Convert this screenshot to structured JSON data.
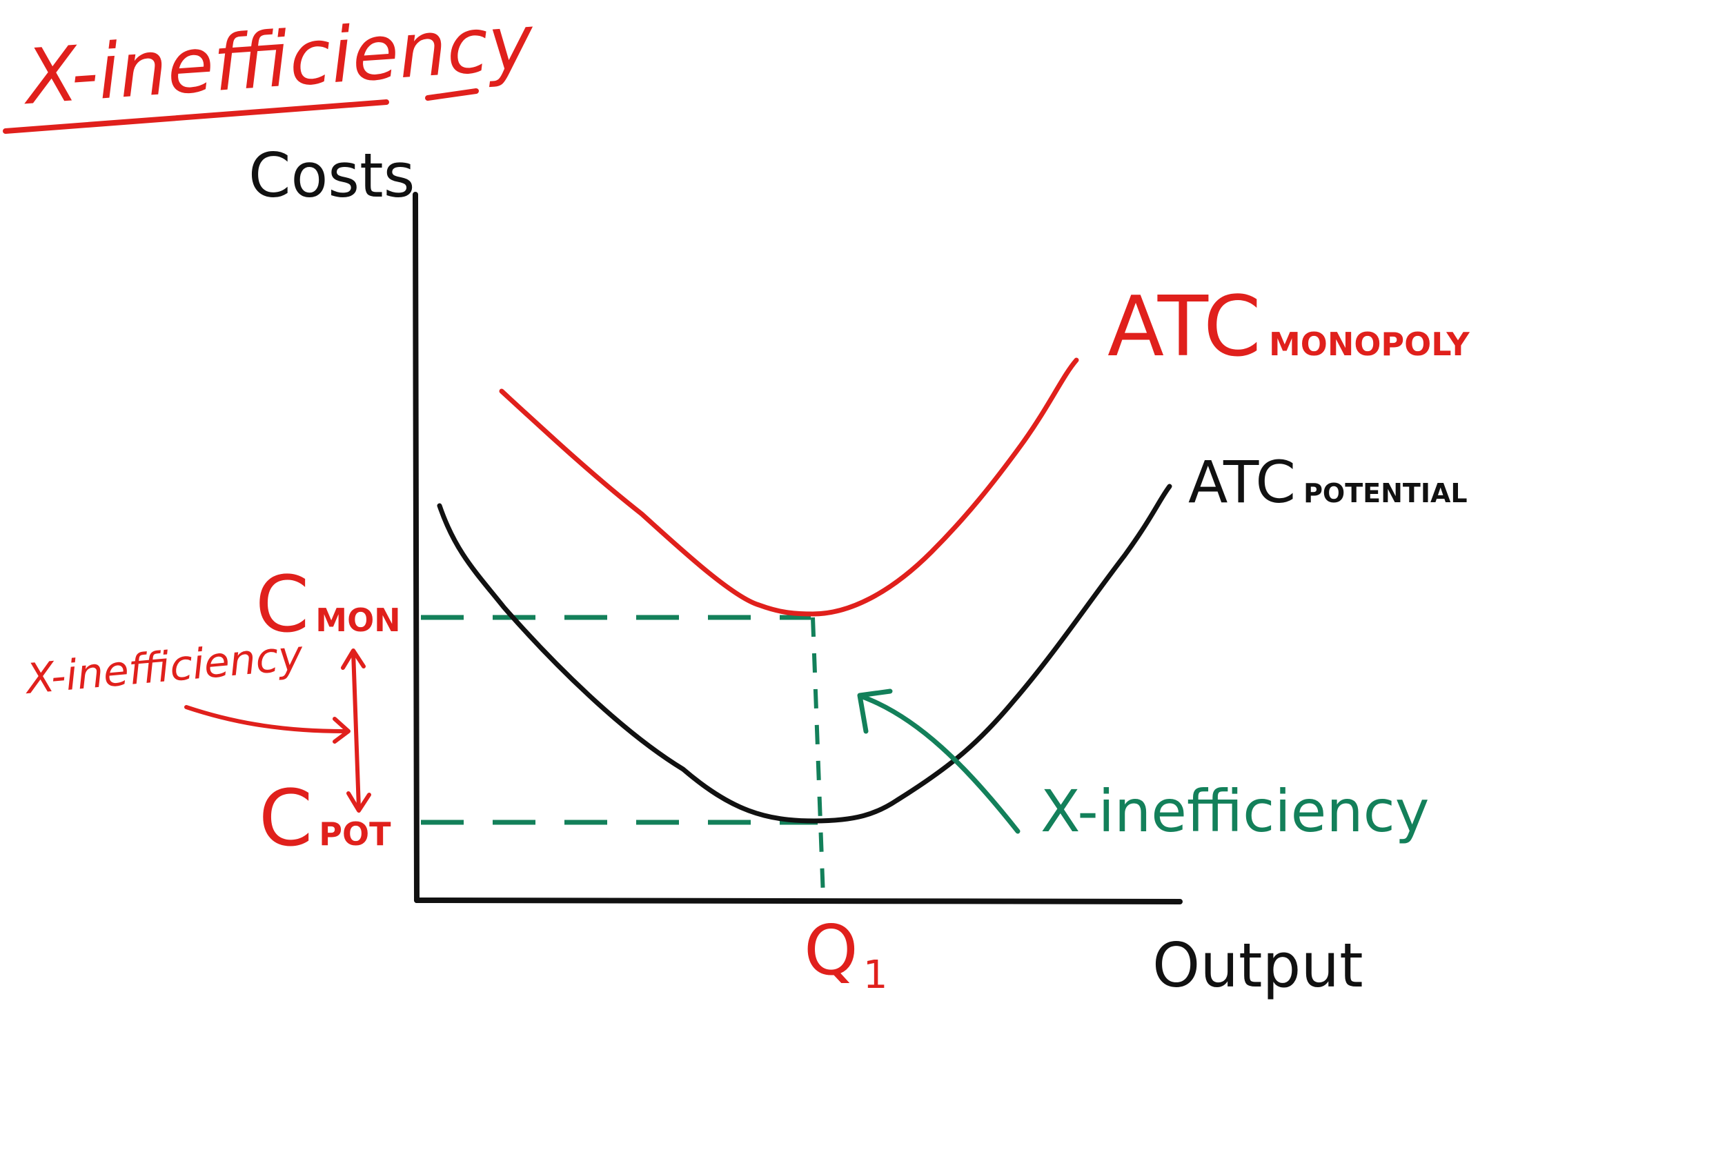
{
  "title": "X-inefficiency",
  "axes": {
    "y_label": "Costs",
    "x_label": "Output"
  },
  "curves": {
    "monopoly": {
      "label_main": "ATC",
      "label_sub": "MONOPOLY",
      "color": "#e0201c"
    },
    "potential": {
      "label_main": "ATC",
      "label_sub": "POTENTIAL",
      "color": "#111111"
    }
  },
  "levels": {
    "c_mon": {
      "main": "C",
      "sub": "MON"
    },
    "c_pot": {
      "main": "C",
      "sub": "POT"
    },
    "q1": {
      "main": "Q",
      "sub": "1"
    }
  },
  "annotations": {
    "left_gap_label": "X-inefficiency",
    "right_gap_label": "X-inefficiency"
  },
  "colors": {
    "red": "#e0201c",
    "black": "#111111",
    "green": "#13805a"
  }
}
